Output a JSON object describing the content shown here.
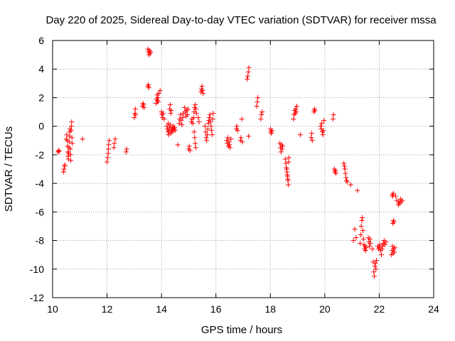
{
  "chart_data": {
    "type": "scatter",
    "title": "Day 220 of 2025, Sidereal Day-to-day VTEC variation (SDTVAR) for receiver mssa",
    "xlabel": "GPS time / hours",
    "ylabel": "SDTVAR / TECUs",
    "xlim": [
      10,
      24
    ],
    "ylim": [
      -12,
      6
    ],
    "xticks": [
      "10",
      "12",
      "14",
      "16",
      "18",
      "20",
      "22",
      "24"
    ],
    "yticks": [
      "6",
      "4",
      "2",
      "0",
      "-2",
      "-4",
      "-6",
      "-8",
      "-10",
      "-12"
    ],
    "grid": true,
    "marker": "+",
    "series_color": "#ff0000",
    "series": [
      {
        "name": "SDTVAR",
        "points": [
          [
            10.2,
            -1.8
          ],
          [
            10.22,
            -1.7
          ],
          [
            10.24,
            -1.75
          ],
          [
            10.4,
            -3.2
          ],
          [
            10.42,
            -3.0
          ],
          [
            10.44,
            -2.8
          ],
          [
            10.45,
            -2.7
          ],
          [
            10.5,
            -0.9
          ],
          [
            10.52,
            -0.6
          ],
          [
            10.54,
            -1.0
          ],
          [
            10.55,
            -1.4
          ],
          [
            10.56,
            -1.8
          ],
          [
            10.57,
            -2.1
          ],
          [
            10.58,
            -2.3
          ],
          [
            10.59,
            -1.9
          ],
          [
            10.6,
            -1.5
          ],
          [
            10.61,
            -1.1
          ],
          [
            10.62,
            -0.7
          ],
          [
            10.63,
            -0.4
          ],
          [
            10.64,
            -0.2
          ],
          [
            10.65,
            -1.6
          ],
          [
            10.66,
            -2.0
          ],
          [
            10.67,
            -2.4
          ],
          [
            10.68,
            -0.3
          ],
          [
            10.69,
            0.0
          ],
          [
            10.7,
            0.3
          ],
          [
            10.71,
            -0.8
          ],
          [
            10.72,
            -1.2
          ],
          [
            11.1,
            -0.9
          ],
          [
            12.0,
            -2.5
          ],
          [
            12.02,
            -2.2
          ],
          [
            12.04,
            -1.9
          ],
          [
            12.05,
            -1.6
          ],
          [
            12.06,
            -1.3
          ],
          [
            12.08,
            -1.0
          ],
          [
            12.25,
            -1.5
          ],
          [
            12.27,
            -1.2
          ],
          [
            12.3,
            -0.9
          ],
          [
            12.7,
            -1.8
          ],
          [
            12.72,
            -1.6
          ],
          [
            13.0,
            0.6
          ],
          [
            13.02,
            0.9
          ],
          [
            13.04,
            1.2
          ],
          [
            13.05,
            0.8
          ],
          [
            13.3,
            1.4
          ],
          [
            13.32,
            1.6
          ],
          [
            13.34,
            1.5
          ],
          [
            13.36,
            1.3
          ],
          [
            13.5,
            5.4
          ],
          [
            13.52,
            5.2
          ],
          [
            13.54,
            5.0
          ],
          [
            13.56,
            5.3
          ],
          [
            13.58,
            5.1
          ],
          [
            13.6,
            5.2
          ],
          [
            13.5,
            2.8
          ],
          [
            13.52,
            2.9
          ],
          [
            13.54,
            2.7
          ],
          [
            13.8,
            1.6
          ],
          [
            13.82,
            1.9
          ],
          [
            13.84,
            2.2
          ],
          [
            13.85,
            1.8
          ],
          [
            13.87,
            2.0
          ],
          [
            13.88,
            1.7
          ],
          [
            13.9,
            2.3
          ],
          [
            13.95,
            2.5
          ],
          [
            14.0,
            1.0
          ],
          [
            14.02,
            0.8
          ],
          [
            14.04,
            0.6
          ],
          [
            14.06,
            0.9
          ],
          [
            14.1,
            0.5
          ],
          [
            14.2,
            0.0
          ],
          [
            14.22,
            -0.2
          ],
          [
            14.24,
            -0.4
          ],
          [
            14.25,
            0.2
          ],
          [
            14.26,
            -0.6
          ],
          [
            14.28,
            -0.3
          ],
          [
            14.3,
            -0.1
          ],
          [
            14.32,
            0.1
          ],
          [
            14.34,
            -0.5
          ],
          [
            14.36,
            -0.2
          ],
          [
            14.38,
            -0.4
          ],
          [
            14.4,
            -0.1
          ],
          [
            14.42,
            -0.3
          ],
          [
            14.44,
            0.0
          ],
          [
            14.46,
            -0.2
          ],
          [
            14.48,
            -0.1
          ],
          [
            14.5,
            -0.3
          ],
          [
            14.3,
            1.2
          ],
          [
            14.32,
            1.5
          ],
          [
            14.34,
            0.9
          ],
          [
            14.36,
            1.1
          ],
          [
            14.6,
            -1.3
          ],
          [
            14.65,
            0.2
          ],
          [
            14.67,
            0.5
          ],
          [
            14.7,
            0.8
          ],
          [
            14.72,
            0.4
          ],
          [
            14.75,
            0.1
          ],
          [
            14.78,
            0.6
          ],
          [
            14.8,
            0.9
          ],
          [
            14.85,
            1.3
          ],
          [
            14.88,
            1.0
          ],
          [
            14.9,
            0.7
          ],
          [
            14.92,
            1.1
          ],
          [
            14.95,
            0.8
          ],
          [
            14.97,
            1.2
          ],
          [
            15.0,
            -1.6
          ],
          [
            15.02,
            -1.4
          ],
          [
            15.05,
            -1.7
          ],
          [
            15.1,
            0.3
          ],
          [
            15.12,
            0.5
          ],
          [
            15.15,
            0.2
          ],
          [
            15.18,
            0.6
          ],
          [
            15.2,
            -0.4
          ],
          [
            15.22,
            -0.8
          ],
          [
            15.24,
            -1.2
          ],
          [
            15.26,
            -1.5
          ],
          [
            15.2,
            1.0
          ],
          [
            15.22,
            1.3
          ],
          [
            15.24,
            1.5
          ],
          [
            15.26,
            1.2
          ],
          [
            15.28,
            0.9
          ],
          [
            15.35,
            0.6
          ],
          [
            15.38,
            0.3
          ],
          [
            15.45,
            2.4
          ],
          [
            15.47,
            2.6
          ],
          [
            15.49,
            2.8
          ],
          [
            15.51,
            2.5
          ],
          [
            15.53,
            2.3
          ],
          [
            15.6,
            0.0
          ],
          [
            15.62,
            -0.4
          ],
          [
            15.64,
            -0.8
          ],
          [
            15.66,
            -1.0
          ],
          [
            15.68,
            -0.6
          ],
          [
            15.7,
            -0.2
          ],
          [
            15.72,
            0.2
          ],
          [
            15.74,
            0.4
          ],
          [
            15.76,
            0.6
          ],
          [
            15.78,
            0.8
          ],
          [
            15.8,
            0.3
          ],
          [
            15.82,
            0.0
          ],
          [
            15.84,
            -0.3
          ],
          [
            15.86,
            -0.6
          ],
          [
            15.88,
            0.5
          ],
          [
            15.9,
            0.9
          ],
          [
            16.4,
            -1.0
          ],
          [
            16.42,
            -1.2
          ],
          [
            16.44,
            -0.8
          ],
          [
            16.46,
            -1.4
          ],
          [
            16.48,
            -1.1
          ],
          [
            16.5,
            -1.3
          ],
          [
            16.52,
            -1.5
          ],
          [
            16.55,
            -0.9
          ],
          [
            16.75,
            -0.2
          ],
          [
            16.77,
            0.0
          ],
          [
            16.8,
            -0.3
          ],
          [
            16.9,
            -1.0
          ],
          [
            16.92,
            -0.8
          ],
          [
            16.95,
            0.5
          ],
          [
            16.97,
            -1.1
          ],
          [
            17.15,
            3.3
          ],
          [
            17.17,
            3.5
          ],
          [
            17.19,
            3.8
          ],
          [
            17.21,
            4.1
          ],
          [
            17.2,
            -0.7
          ],
          [
            17.5,
            1.4
          ],
          [
            17.52,
            1.7
          ],
          [
            17.54,
            2.0
          ],
          [
            17.65,
            0.5
          ],
          [
            17.67,
            0.8
          ],
          [
            17.7,
            1.0
          ],
          [
            18.0,
            -0.2
          ],
          [
            18.02,
            -0.4
          ],
          [
            18.04,
            -0.5
          ],
          [
            18.06,
            -0.3
          ],
          [
            18.35,
            -1.2
          ],
          [
            18.37,
            -1.5
          ],
          [
            18.39,
            -1.8
          ],
          [
            18.41,
            -1.3
          ],
          [
            18.43,
            -1.6
          ],
          [
            18.45,
            -1.4
          ],
          [
            18.55,
            -2.3
          ],
          [
            18.57,
            -2.6
          ],
          [
            18.59,
            -2.9
          ],
          [
            18.61,
            -3.2
          ],
          [
            18.63,
            -3.5
          ],
          [
            18.65,
            -3.8
          ],
          [
            18.66,
            -4.1
          ],
          [
            18.67,
            -2.5
          ],
          [
            18.68,
            -2.2
          ],
          [
            18.6,
            -3.0
          ],
          [
            18.62,
            -3.4
          ],
          [
            18.64,
            -3.7
          ],
          [
            18.85,
            0.5
          ],
          [
            18.87,
            0.8
          ],
          [
            18.89,
            1.1
          ],
          [
            18.91,
            0.9
          ],
          [
            18.93,
            1.2
          ],
          [
            18.95,
            1.0
          ],
          [
            18.97,
            1.4
          ],
          [
            19.1,
            -0.6
          ],
          [
            19.5,
            -0.8
          ],
          [
            19.52,
            -0.5
          ],
          [
            19.54,
            -1.0
          ],
          [
            19.6,
            1.0
          ],
          [
            19.62,
            1.2
          ],
          [
            19.64,
            1.1
          ],
          [
            19.85,
            0.0
          ],
          [
            19.87,
            -0.2
          ],
          [
            19.89,
            0.2
          ],
          [
            19.91,
            -0.4
          ],
          [
            19.93,
            -0.6
          ],
          [
            19.95,
            -0.3
          ],
          [
            19.97,
            0.4
          ],
          [
            20.3,
            0.5
          ],
          [
            20.32,
            0.8
          ],
          [
            20.35,
            -3.0
          ],
          [
            20.37,
            -3.2
          ],
          [
            20.39,
            -3.1
          ],
          [
            20.41,
            -3.3
          ],
          [
            20.7,
            -2.6
          ],
          [
            20.72,
            -2.8
          ],
          [
            20.74,
            -3.0
          ],
          [
            20.76,
            -3.3
          ],
          [
            20.78,
            -3.6
          ],
          [
            20.8,
            -3.8
          ],
          [
            20.82,
            -3.9
          ],
          [
            20.95,
            -4.1
          ],
          [
            21.05,
            -8.0
          ],
          [
            21.1,
            -7.2
          ],
          [
            21.15,
            -7.8
          ],
          [
            21.2,
            -4.5
          ],
          [
            21.3,
            -8.2
          ],
          [
            21.32,
            -7.6
          ],
          [
            21.34,
            -7.0
          ],
          [
            21.36,
            -6.6
          ],
          [
            21.38,
            -6.4
          ],
          [
            21.4,
            -7.3
          ],
          [
            21.42,
            -7.9
          ],
          [
            21.44,
            -8.3
          ],
          [
            21.46,
            -8.6
          ],
          [
            21.48,
            -8.4
          ],
          [
            21.5,
            -8.7
          ],
          [
            21.52,
            -8.5
          ],
          [
            21.6,
            -7.8
          ],
          [
            21.62,
            -8.1
          ],
          [
            21.64,
            -8.4
          ],
          [
            21.66,
            -7.9
          ],
          [
            21.68,
            -8.2
          ],
          [
            21.75,
            -8.6
          ],
          [
            21.78,
            -9.5
          ],
          [
            21.8,
            -10.2
          ],
          [
            21.82,
            -10.5
          ],
          [
            21.84,
            -9.8
          ],
          [
            21.86,
            -9.6
          ],
          [
            21.88,
            -10.0
          ],
          [
            21.9,
            -9.4
          ],
          [
            21.95,
            -8.4
          ],
          [
            21.98,
            -8.6
          ],
          [
            22.0,
            -8.5
          ],
          [
            22.02,
            -8.3
          ],
          [
            22.05,
            -8.7
          ],
          [
            22.08,
            -9.0
          ],
          [
            22.1,
            -8.6
          ],
          [
            22.12,
            -8.4
          ],
          [
            22.15,
            -8.2
          ],
          [
            22.18,
            -8.0
          ],
          [
            22.2,
            -8.3
          ],
          [
            22.25,
            -8.1
          ],
          [
            22.45,
            -9.0
          ],
          [
            22.47,
            -8.7
          ],
          [
            22.49,
            -8.4
          ],
          [
            22.51,
            -8.9
          ],
          [
            22.53,
            -8.6
          ],
          [
            22.55,
            -8.8
          ],
          [
            22.57,
            -8.5
          ],
          [
            22.5,
            -6.8
          ],
          [
            22.52,
            -6.6
          ],
          [
            22.54,
            -6.7
          ],
          [
            22.48,
            -4.8
          ],
          [
            22.5,
            -4.9
          ],
          [
            22.52,
            -4.7
          ],
          [
            22.6,
            -4.9
          ],
          [
            22.65,
            -5.2
          ],
          [
            22.7,
            -5.5
          ],
          [
            22.72,
            -5.3
          ],
          [
            22.75,
            -5.4
          ],
          [
            22.78,
            -5.1
          ],
          [
            22.8,
            -5.3
          ],
          [
            22.85,
            -5.2
          ]
        ]
      }
    ]
  }
}
